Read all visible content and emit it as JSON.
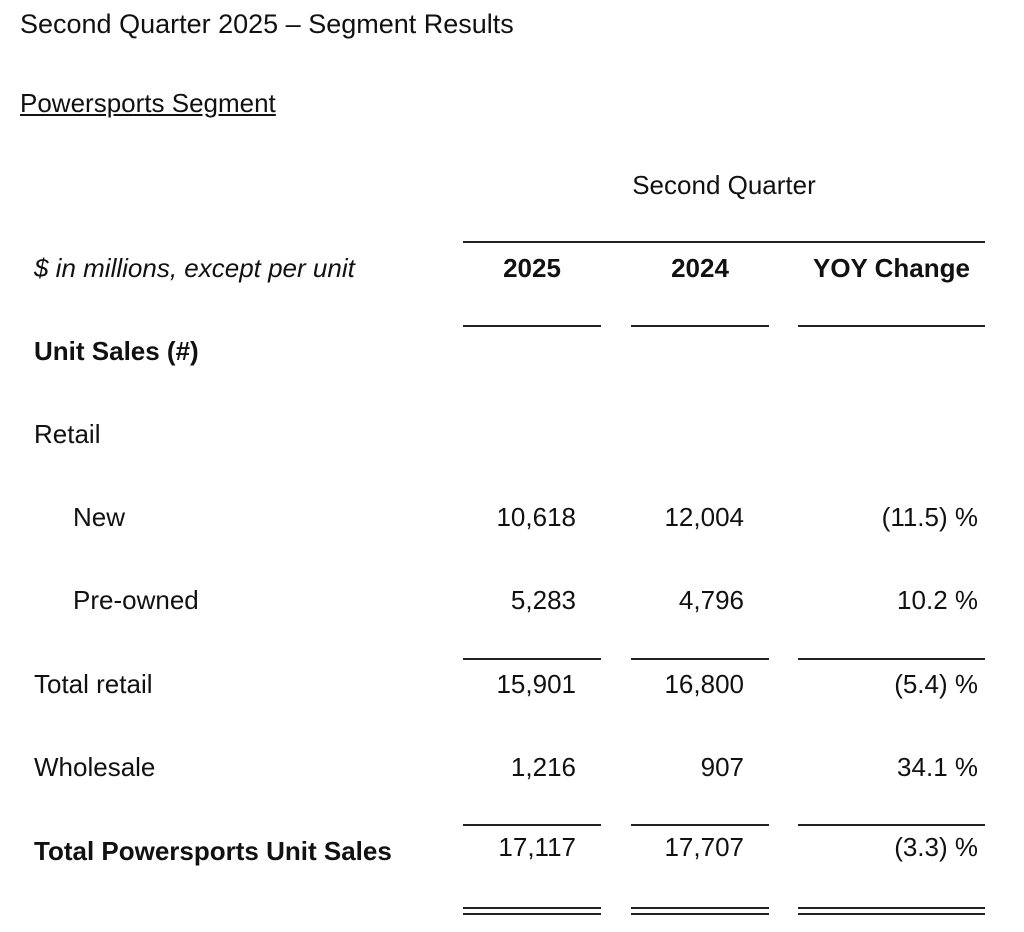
{
  "header": {
    "title": "Second Quarter 2025 – Segment Results",
    "section": "Powersports Segment"
  },
  "table": {
    "group_header": "Second Quarter",
    "label_header": "$ in millions, except per unit",
    "columns": [
      "2025",
      "2024",
      "YOY Change"
    ],
    "rows": [
      {
        "label": "Unit Sales (#)"
      },
      {
        "label": "Retail"
      },
      {
        "label": "New",
        "values": [
          "10,618",
          "12,004",
          "(11.5) %"
        ]
      },
      {
        "label": "Pre-owned",
        "values": [
          "5,283",
          "4,796",
          "10.2 %"
        ]
      },
      {
        "label": "Total retail",
        "values": [
          "15,901",
          "16,800",
          "(5.4) %"
        ]
      },
      {
        "label": "Wholesale",
        "values": [
          "1,216",
          "907",
          "34.1 %"
        ]
      },
      {
        "label": "Total Powersports Unit Sales",
        "values": [
          "17,117",
          "17,707",
          "(3.3) %"
        ]
      }
    ]
  }
}
